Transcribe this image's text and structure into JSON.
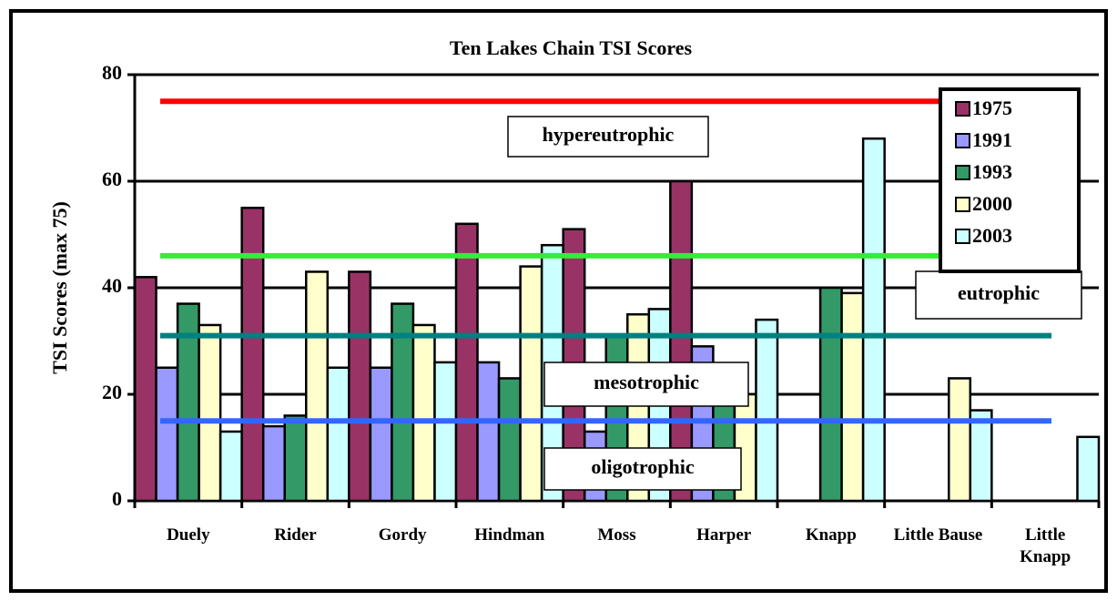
{
  "chart_data": {
    "type": "bar",
    "title": "Ten Lakes Chain TSI Scores",
    "y_label": "TSI Scores (max 75)",
    "categories": [
      "Duely",
      "Rider",
      "Gordy",
      "Hindman",
      "Moss",
      "Harper",
      "Knapp",
      "Little Bause",
      "Little Knapp"
    ],
    "series": [
      {
        "name": "1975",
        "color": "#993366",
        "values": [
          42,
          55,
          43,
          52,
          51,
          60,
          null,
          null,
          null
        ]
      },
      {
        "name": "1991",
        "color": "#9999ff",
        "values": [
          25,
          14,
          25,
          26,
          13,
          29,
          null,
          null,
          null
        ]
      },
      {
        "name": "1993",
        "color": "#339966",
        "values": [
          37,
          16,
          37,
          23,
          31,
          19,
          40,
          null,
          null
        ]
      },
      {
        "name": "2000",
        "color": "#ffffcc",
        "values": [
          33,
          43,
          33,
          44,
          35,
          20,
          39,
          23,
          null
        ]
      },
      {
        "name": "2003",
        "color": "#ccffff",
        "values": [
          13,
          25,
          26,
          48,
          36,
          34,
          68,
          17,
          12
        ]
      }
    ],
    "ylim": [
      0,
      80
    ],
    "yticks": [
      0,
      20,
      40,
      60,
      80
    ],
    "grid": true,
    "legend": "top-right",
    "reference_lines": [
      {
        "value": 75,
        "color": "#ff0000"
      },
      {
        "value": 46,
        "color": "#33ee33"
      },
      {
        "value": 31,
        "color": "#008080"
      },
      {
        "value": 15,
        "color": "#3366ff"
      }
    ],
    "annotations": [
      "hypereutrophic",
      "eutrophic",
      "mesotrophic",
      "oligotrophic"
    ]
  }
}
